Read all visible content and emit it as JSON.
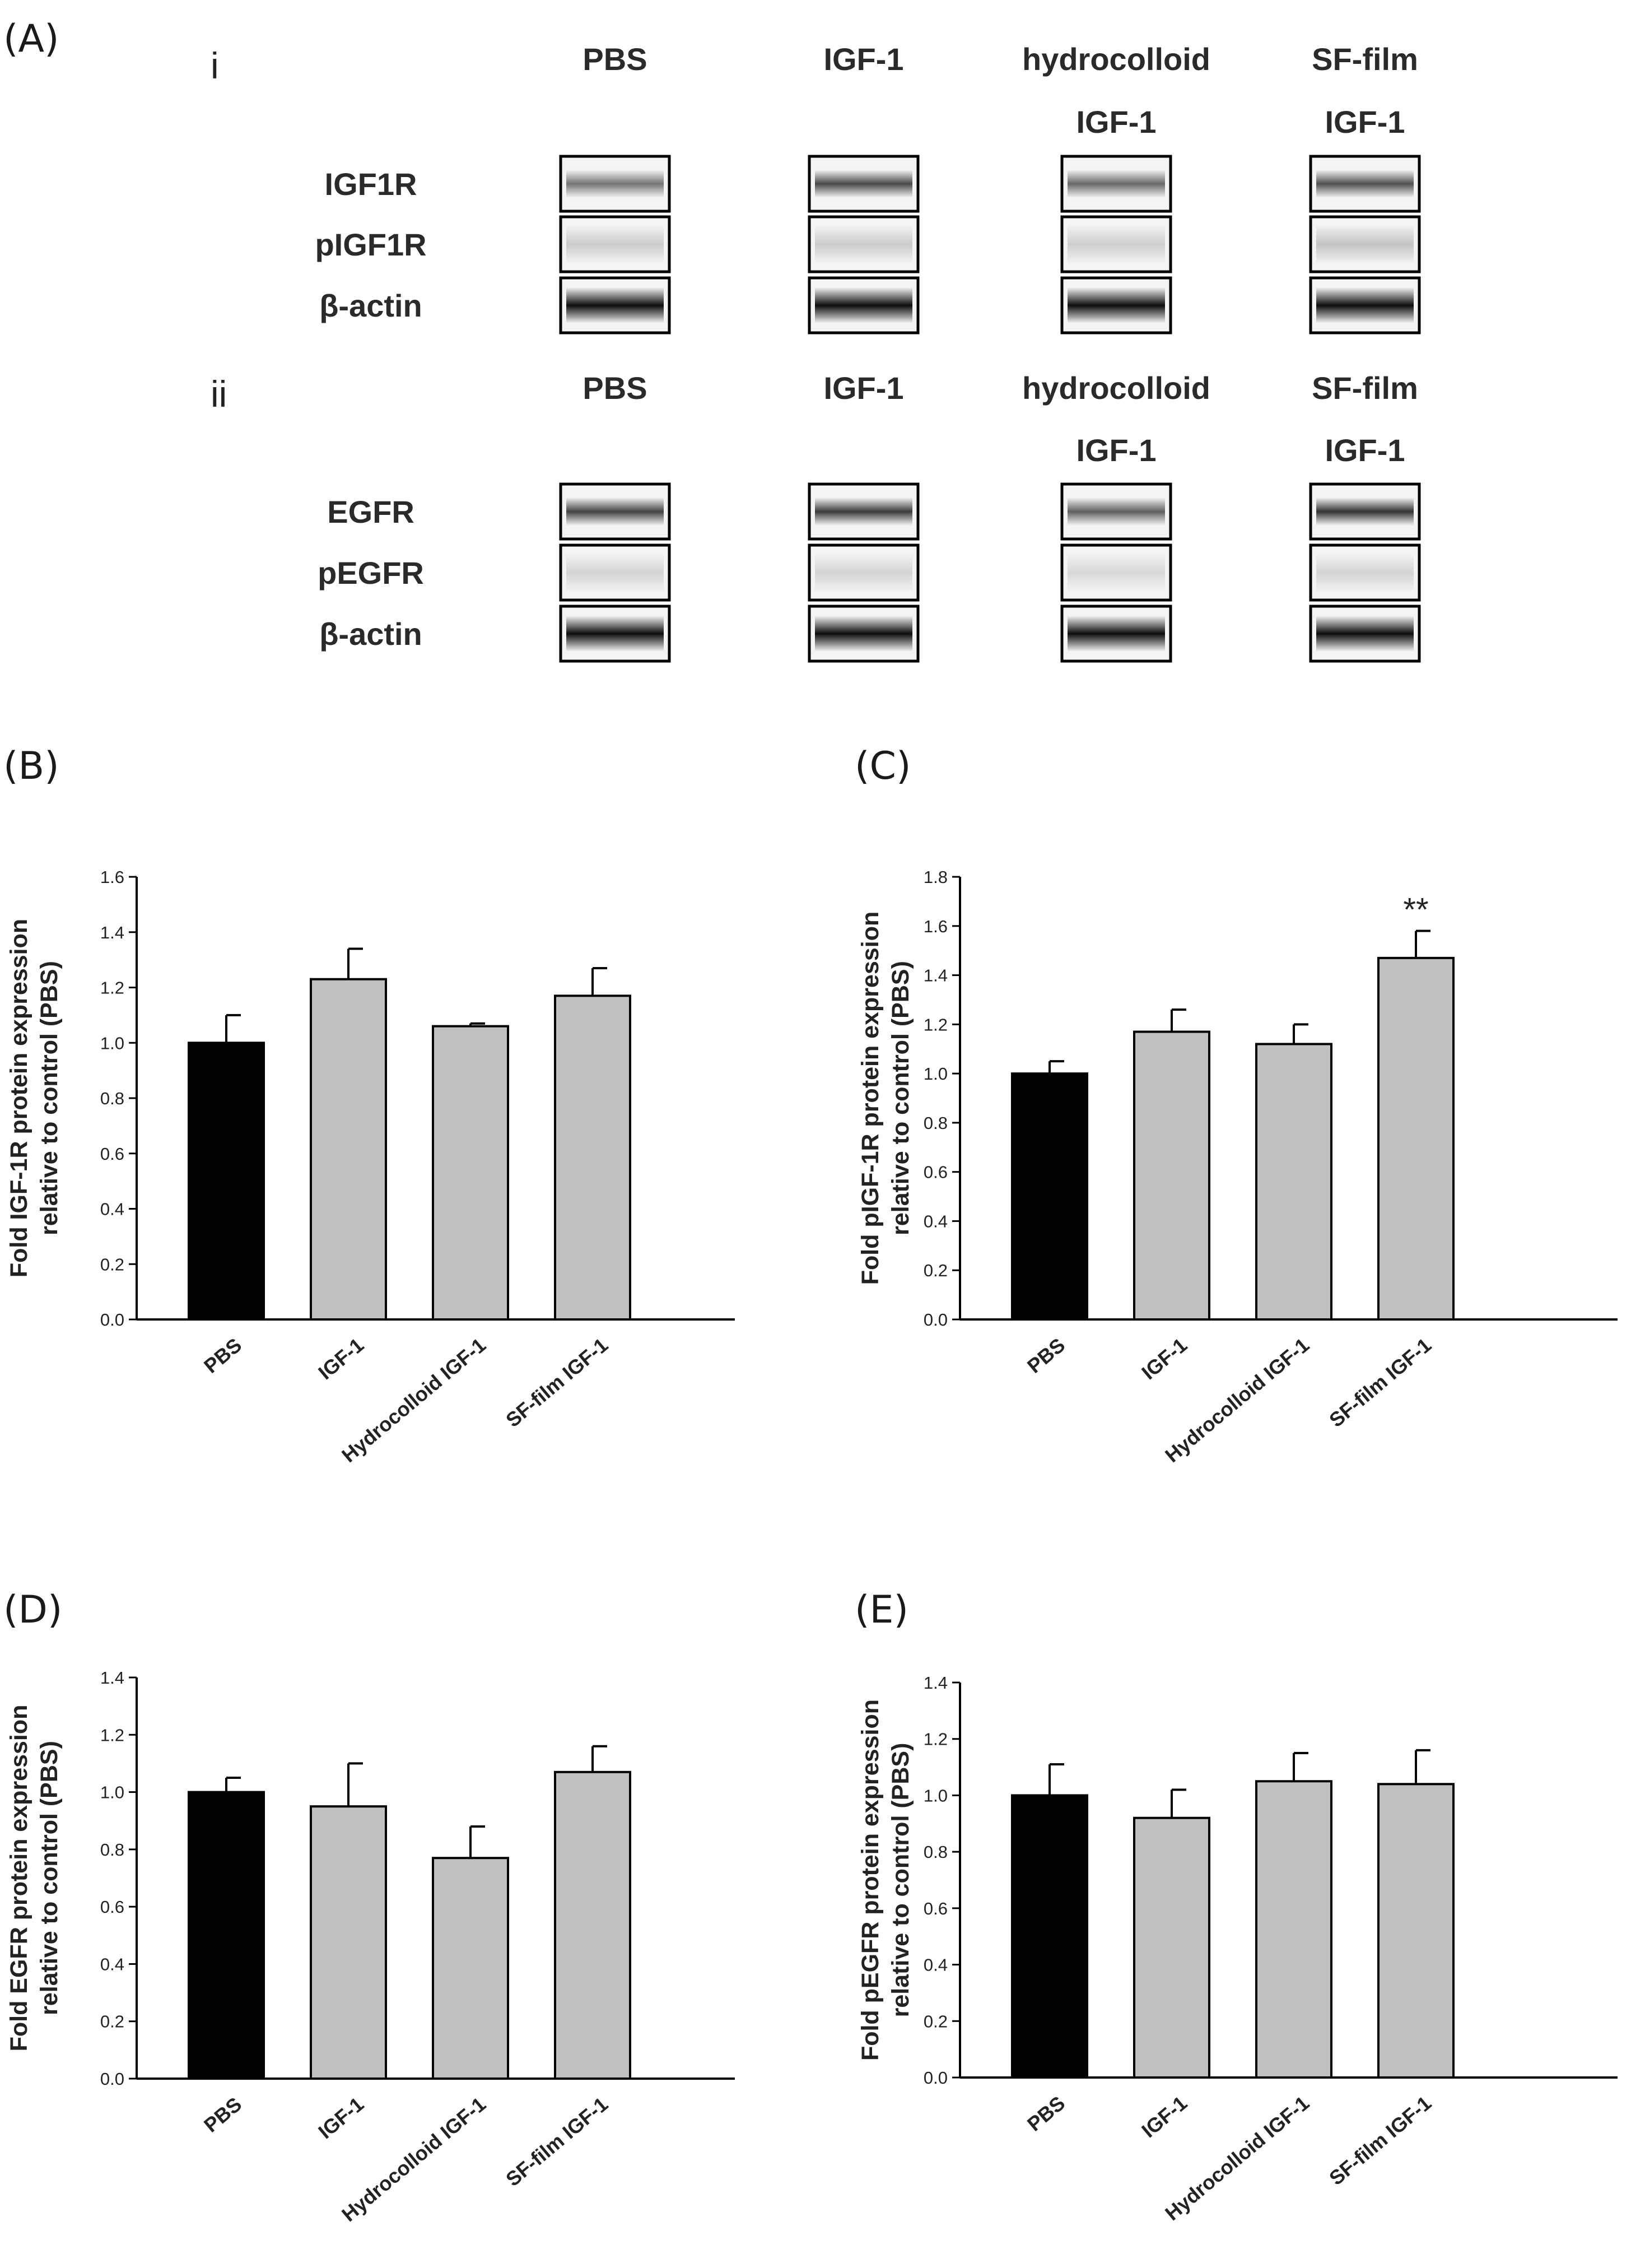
{
  "colors": {
    "control": "#000000",
    "treatment": "#c0c0c0",
    "axis": "#000000"
  },
  "blots": {
    "panel_label": "(A)",
    "sections": [
      {
        "roman": "i",
        "headers": [
          {
            "l1": "PBS",
            "l2": ""
          },
          {
            "l1": "IGF-1",
            "l2": ""
          },
          {
            "l1": "hydrocolloid",
            "l2": "IGF-1"
          },
          {
            "l1": "SF-film",
            "l2": "IGF-1"
          }
        ],
        "rows": [
          {
            "label": "IGF1R",
            "kind": "band-medium",
            "intensity": [
              0.45,
              0.75,
              0.55,
              0.7
            ]
          },
          {
            "label": "pIGF1R",
            "kind": "band-faint",
            "intensity": [
              0.25,
              0.25,
              0.22,
              0.35
            ]
          },
          {
            "label": "β-actin",
            "kind": "band-strong",
            "intensity": [
              1,
              1,
              1,
              1
            ]
          }
        ]
      },
      {
        "roman": "ii",
        "headers": [
          {
            "l1": "PBS",
            "l2": ""
          },
          {
            "l1": "IGF-1",
            "l2": ""
          },
          {
            "l1": "hydrocolloid",
            "l2": "IGF-1"
          },
          {
            "l1": "SF-film",
            "l2": "IGF-1"
          }
        ],
        "rows": [
          {
            "label": "EGFR",
            "kind": "band-medium",
            "intensity": [
              0.8,
              0.85,
              0.6,
              0.9
            ]
          },
          {
            "label": "pEGFR",
            "kind": "band-faint",
            "intensity": [
              0.15,
              0.15,
              0.1,
              0.15
            ]
          },
          {
            "label": "β-actin",
            "kind": "band-strong",
            "intensity": [
              1,
              1,
              1,
              1
            ]
          }
        ]
      }
    ]
  },
  "chart_data": [
    {
      "panel": "(B)",
      "type": "bar",
      "categories": [
        "PBS",
        "IGF-1",
        "Hydrocolloid IGF-1",
        "SF-film IGF-1"
      ],
      "values": [
        1.0,
        1.23,
        1.06,
        1.17
      ],
      "errors": [
        0.1,
        0.11,
        0.01,
        0.1
      ],
      "annotations": [
        "",
        "",
        "",
        ""
      ],
      "ylim": [
        0,
        1.6
      ],
      "yticks": [
        "0.0",
        "0.2",
        "0.4",
        "0.6",
        "0.8",
        "1.0",
        "1.2",
        "1.4",
        "1.6"
      ],
      "ylabel_line1": "Fold IGF-1R protein expression",
      "ylabel_line2": "relative to control (PBS)",
      "xlabel": ""
    },
    {
      "panel": "(C)",
      "type": "bar",
      "categories": [
        "PBS",
        "IGF-1",
        "Hydrocolloid IGF-1",
        "SF-film IGF-1"
      ],
      "values": [
        1.0,
        1.17,
        1.12,
        1.47
      ],
      "errors": [
        0.05,
        0.09,
        0.08,
        0.11
      ],
      "annotations": [
        "",
        "",
        "",
        "**"
      ],
      "ylim": [
        0,
        1.8
      ],
      "yticks": [
        "0.0",
        "0.2",
        "0.4",
        "0.6",
        "0.8",
        "1.0",
        "1.2",
        "1.4",
        "1.6",
        "1.8"
      ],
      "ylabel_line1": "Fold pIGF-1R protein expression",
      "ylabel_line2": "relative to control (PBS)",
      "xlabel": ""
    },
    {
      "panel": "(D)",
      "type": "bar",
      "categories": [
        "PBS",
        "IGF-1",
        "Hydrocolloid IGF-1",
        "SF-film IGF-1"
      ],
      "values": [
        1.0,
        0.95,
        0.77,
        1.07
      ],
      "errors": [
        0.05,
        0.15,
        0.11,
        0.09
      ],
      "annotations": [
        "",
        "",
        "",
        ""
      ],
      "ylim": [
        0,
        1.4
      ],
      "yticks": [
        "0.0",
        "0.2",
        "0.4",
        "0.6",
        "0.8",
        "1.0",
        "1.2",
        "1.4"
      ],
      "ylabel_line1": "Fold EGFR protein expression",
      "ylabel_line2": "relative to control (PBS)",
      "xlabel": ""
    },
    {
      "panel": "(E)",
      "type": "bar",
      "categories": [
        "PBS",
        "IGF-1",
        "Hydrocolloid IGF-1",
        "SF-film IGF-1"
      ],
      "values": [
        1.0,
        0.92,
        1.05,
        1.04
      ],
      "errors": [
        0.11,
        0.1,
        0.1,
        0.12
      ],
      "annotations": [
        "",
        "",
        "",
        ""
      ],
      "ylim": [
        0,
        1.4
      ],
      "yticks": [
        "0.0",
        "0.2",
        "0.4",
        "0.6",
        "0.8",
        "1.0",
        "1.2",
        "1.4"
      ],
      "ylabel_line1": "Fold pEGFR protein expression",
      "ylabel_line2": "relative to control (PBS)",
      "xlabel": ""
    }
  ]
}
